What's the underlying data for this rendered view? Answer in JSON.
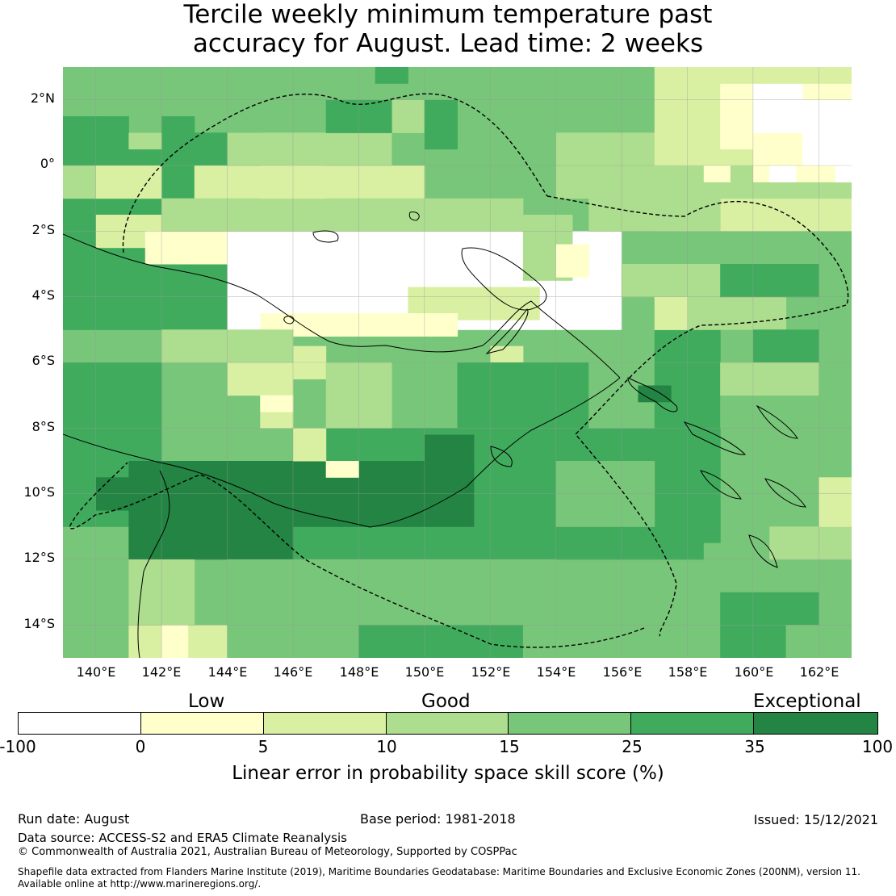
{
  "title_line1": "Tercile weekly minimum temperature past",
  "title_line2": "accuracy for August. Lead time: 2 weeks",
  "lat_ticks": [
    "2°N",
    "0°",
    "2°S",
    "4°S",
    "6°S",
    "8°S",
    "10°S",
    "12°S",
    "14°S"
  ],
  "lon_ticks": [
    "140°E",
    "142°E",
    "144°E",
    "146°E",
    "148°E",
    "150°E",
    "152°E",
    "154°E",
    "156°E",
    "158°E",
    "160°E",
    "162°E"
  ],
  "legend": {
    "categories": [
      "Low",
      "Good",
      "Exceptional"
    ],
    "ticks": [
      "-100",
      "0",
      "5",
      "10",
      "15",
      "25",
      "35",
      "100"
    ],
    "colors": [
      "#ffffff",
      "#ffffcc",
      "#d9f0a3",
      "#addd8e",
      "#78c679",
      "#41ab5d",
      "#238443"
    ],
    "label": "Linear error in probability space skill score (%)"
  },
  "footer": {
    "run_date": "Run date: August",
    "base_period": "Base period: 1981-2018",
    "issued": "Issued: 15/12/2021",
    "data_source": "Data source: ACCESS-S2 and ERA5 Climate Reanalysis",
    "copyright": "© Commonwealth of Australia 2021, Australian Bureau of Meteorology, Supported by COSPPac",
    "shapefile_line1": "Shapefile data extracted from Flanders Marine Institute (2019), Maritime Boundaries Geodatabase: Maritime Boundaries and Exclusive Economic Zones (200NM), version 11.",
    "shapefile_line2": "Available online at http://www.marineregions.org/."
  },
  "map_data": {
    "lon_range": [
      139,
      163
    ],
    "lat_range": [
      -15,
      3
    ],
    "default_class": 4,
    "rects": [
      [
        0,
        -15,
        4,
        3,
        4
      ],
      [
        0,
        -5,
        6,
        6,
        5
      ],
      [
        0,
        -11,
        3,
        5,
        5
      ],
      [
        4,
        -2,
        7,
        2,
        2
      ],
      [
        1,
        -2.5,
        12,
        1,
        2
      ],
      [
        2.5,
        -3,
        6,
        1,
        1
      ],
      [
        5,
        -5,
        12,
        3,
        0
      ],
      [
        10.5,
        -4.7,
        4,
        1,
        2
      ],
      [
        6,
        -5.2,
        6,
        0.7,
        1
      ],
      [
        6,
        -6.5,
        2,
        1,
        2
      ],
      [
        13,
        -6.5,
        1,
        1,
        2
      ],
      [
        3,
        -2,
        11,
        1,
        3
      ],
      [
        14,
        -3.5,
        1.5,
        2,
        3
      ],
      [
        15,
        -3.4,
        1,
        1,
        1
      ],
      [
        12,
        -8,
        8,
        2,
        5
      ],
      [
        12,
        -12,
        8,
        4,
        5
      ],
      [
        7,
        -12,
        5,
        4,
        5
      ],
      [
        2,
        -12,
        5,
        3,
        6
      ],
      [
        4.5,
        -11,
        8,
        2,
        6
      ],
      [
        1,
        -10.5,
        3,
        1,
        6
      ],
      [
        11,
        -9.5,
        1.5,
        1.3,
        6
      ],
      [
        16,
        -8,
        2,
        2,
        4
      ],
      [
        15,
        -11,
        3,
        2,
        4
      ],
      [
        18,
        -8,
        2,
        3,
        5
      ],
      [
        20,
        -8,
        2,
        2,
        4
      ],
      [
        17.5,
        -7.2,
        1,
        0.5,
        6
      ],
      [
        2,
        -15,
        3,
        1,
        2
      ],
      [
        2,
        -14,
        2,
        2,
        3
      ],
      [
        3,
        -15,
        0.8,
        1,
        1
      ],
      [
        5,
        -15,
        10,
        3,
        4
      ],
      [
        9,
        -15,
        7,
        1,
        5
      ],
      [
        14,
        -15,
        6,
        2,
        4
      ],
      [
        20,
        -15,
        3,
        2,
        5
      ],
      [
        22,
        -15,
        2,
        1,
        4
      ],
      [
        19.5,
        -12.5,
        2,
        1,
        4
      ],
      [
        21.5,
        -12,
        2.5,
        1,
        3
      ],
      [
        23,
        -11,
        1,
        1.5,
        2
      ],
      [
        18,
        -2,
        6,
        2,
        2
      ],
      [
        16,
        -2,
        4,
        1,
        3
      ],
      [
        15,
        -1,
        9,
        2,
        3
      ],
      [
        18,
        0,
        6,
        3,
        2
      ],
      [
        20,
        0.5,
        4,
        2,
        1
      ],
      [
        21,
        -0.5,
        3,
        1.2,
        1
      ],
      [
        22.5,
        0,
        1.5,
        2,
        0
      ],
      [
        23.5,
        -0.5,
        0.5,
        2.5,
        0
      ],
      [
        21.5,
        -0.5,
        0.8,
        0.5,
        0
      ],
      [
        19.5,
        -0.5,
        0.8,
        0.5,
        1
      ],
      [
        21,
        1,
        1.5,
        1.5,
        0
      ],
      [
        20,
        2.5,
        4,
        0.5,
        2
      ],
      [
        12,
        2,
        3,
        1,
        4
      ],
      [
        10,
        1,
        2,
        1,
        3
      ],
      [
        5,
        0,
        5,
        1,
        3
      ],
      [
        6,
        -1,
        2,
        1,
        2
      ],
      [
        2,
        0.5,
        1,
        0.5,
        3
      ],
      [
        8,
        1,
        2,
        1,
        5
      ],
      [
        11,
        0.5,
        1,
        1.5,
        5
      ],
      [
        9.5,
        2.5,
        1,
        0.5,
        5
      ],
      [
        0,
        1,
        2,
        0.5,
        5
      ],
      [
        3,
        1,
        1,
        0.5,
        5
      ],
      [
        0,
        -1,
        1,
        1,
        3
      ],
      [
        1,
        -1,
        2,
        1,
        2
      ],
      [
        19,
        -5,
        3,
        2,
        3
      ],
      [
        20,
        -4,
        3,
        1,
        5
      ],
      [
        21,
        -6,
        2,
        1,
        5
      ],
      [
        20,
        -7,
        3,
        1,
        3
      ],
      [
        17,
        -4,
        2,
        1,
        3
      ],
      [
        18,
        -5,
        1,
        1,
        2
      ],
      [
        6,
        -8,
        1,
        1,
        2
      ],
      [
        7,
        -9,
        1,
        1,
        2
      ],
      [
        8,
        -8,
        2,
        2,
        3
      ],
      [
        5,
        -7,
        2,
        1,
        2
      ],
      [
        3,
        -6,
        4,
        1,
        3
      ],
      [
        6,
        -7.5,
        1,
        0.5,
        1
      ],
      [
        8,
        -9.5,
        1,
        0.5,
        1
      ]
    ]
  }
}
